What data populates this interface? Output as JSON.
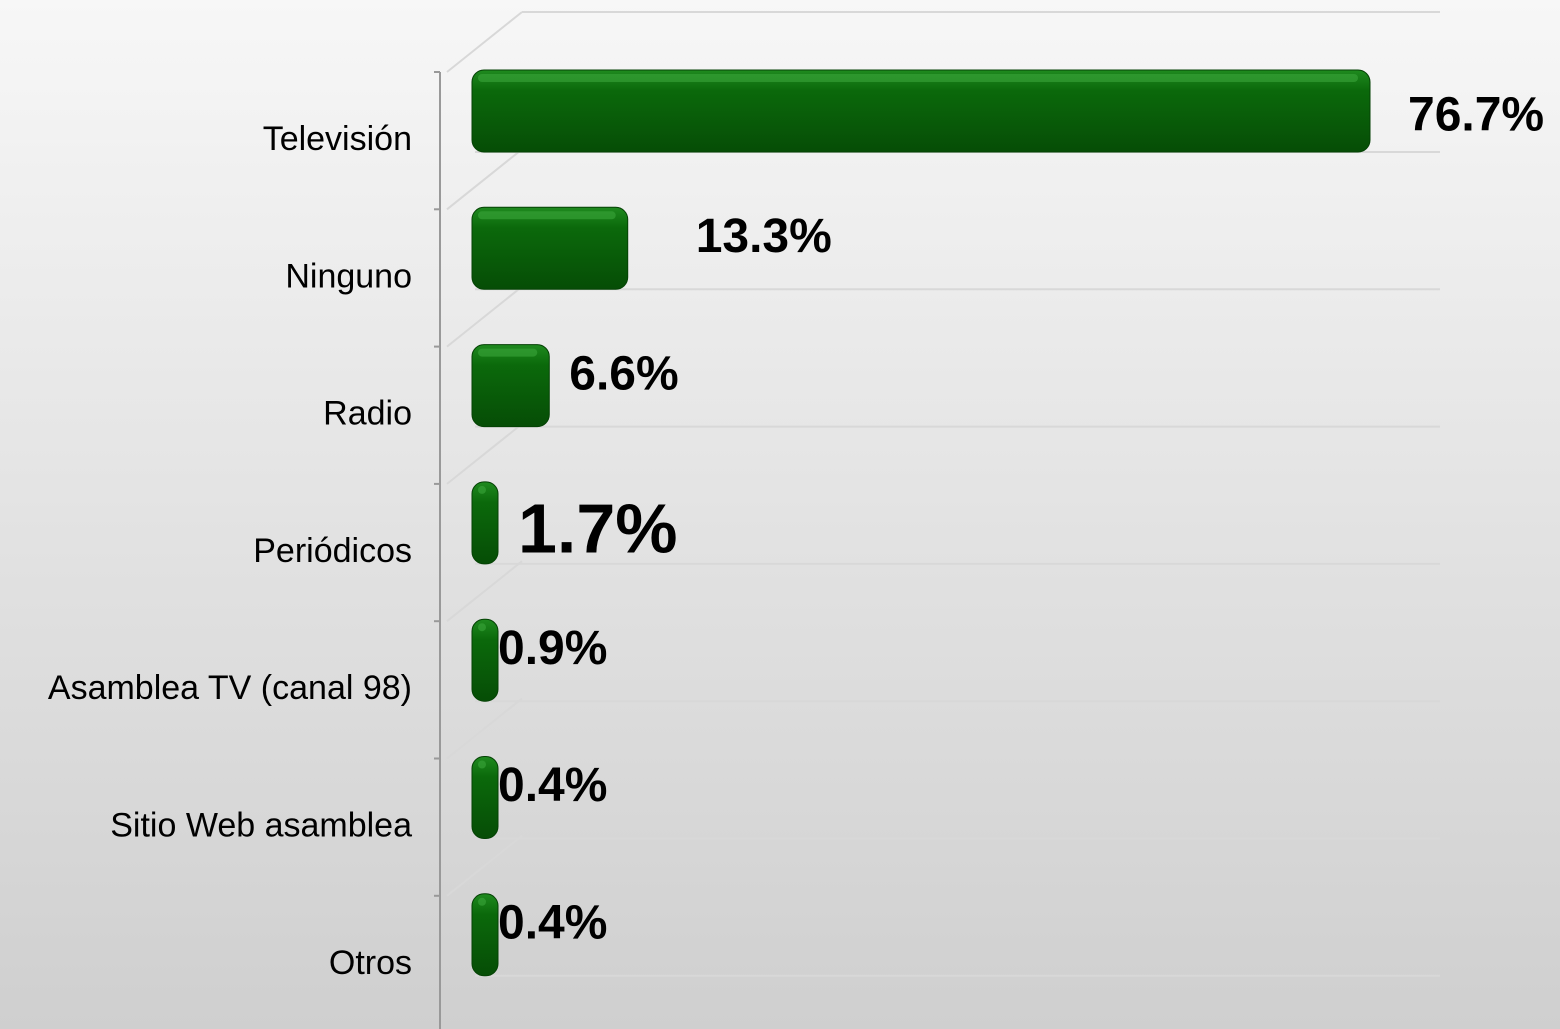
{
  "chart_data": {
    "type": "bar",
    "categories": [
      "Televisión",
      "Ninguno",
      "Radio",
      "Periódicos",
      "Asamblea TV (canal 98)",
      "Sitio Web asamblea",
      "Otros"
    ],
    "values": [
      76.7,
      13.3,
      6.6,
      1.7,
      0.9,
      0.4,
      0.4
    ],
    "value_labels": [
      "76.7%",
      "13.3%",
      "6.6%",
      "1.7%",
      "0.9%",
      "0.4%",
      "0.4%"
    ],
    "color": "#0b690b",
    "grid": true
  }
}
